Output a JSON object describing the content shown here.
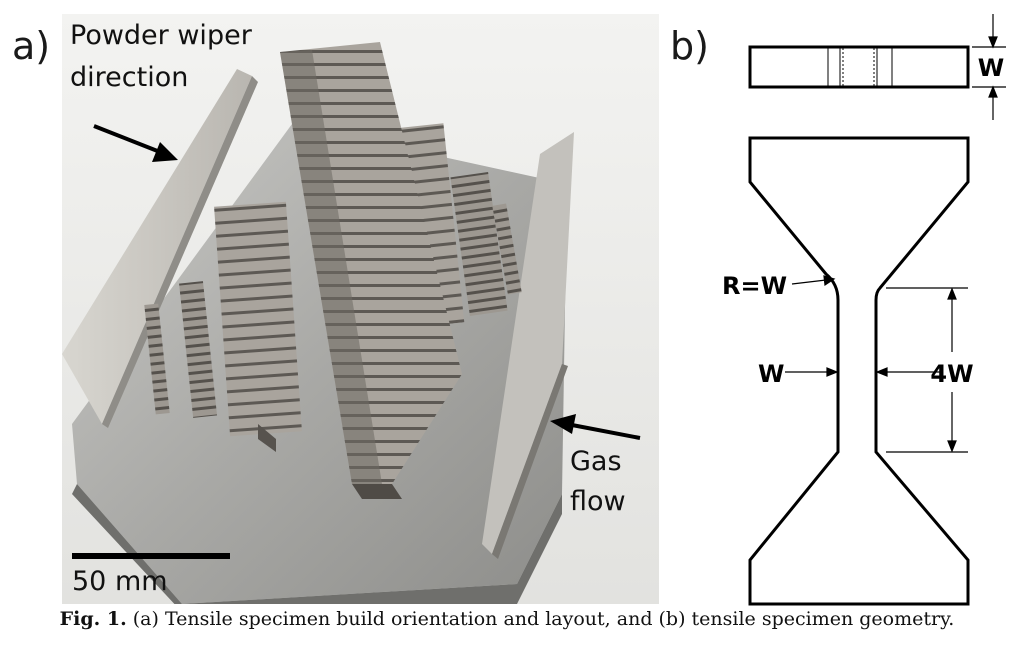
{
  "panel_a": {
    "label": "a)",
    "wiper_label_line1": "Powder wiper",
    "wiper_label_line2": "direction",
    "gas_label_line1": "Gas",
    "gas_label_line2": "flow",
    "scale_label": "50 mm"
  },
  "panel_b": {
    "label": "b)",
    "dim_thickness": "W",
    "dim_radius": "R=W",
    "dim_width": "W",
    "dim_gauge_length": "4W"
  },
  "caption": {
    "fig_label": "Fig. 1.",
    "text": " (a) Tensile specimen build orientation and layout, and (b) tensile specimen geometry."
  }
}
